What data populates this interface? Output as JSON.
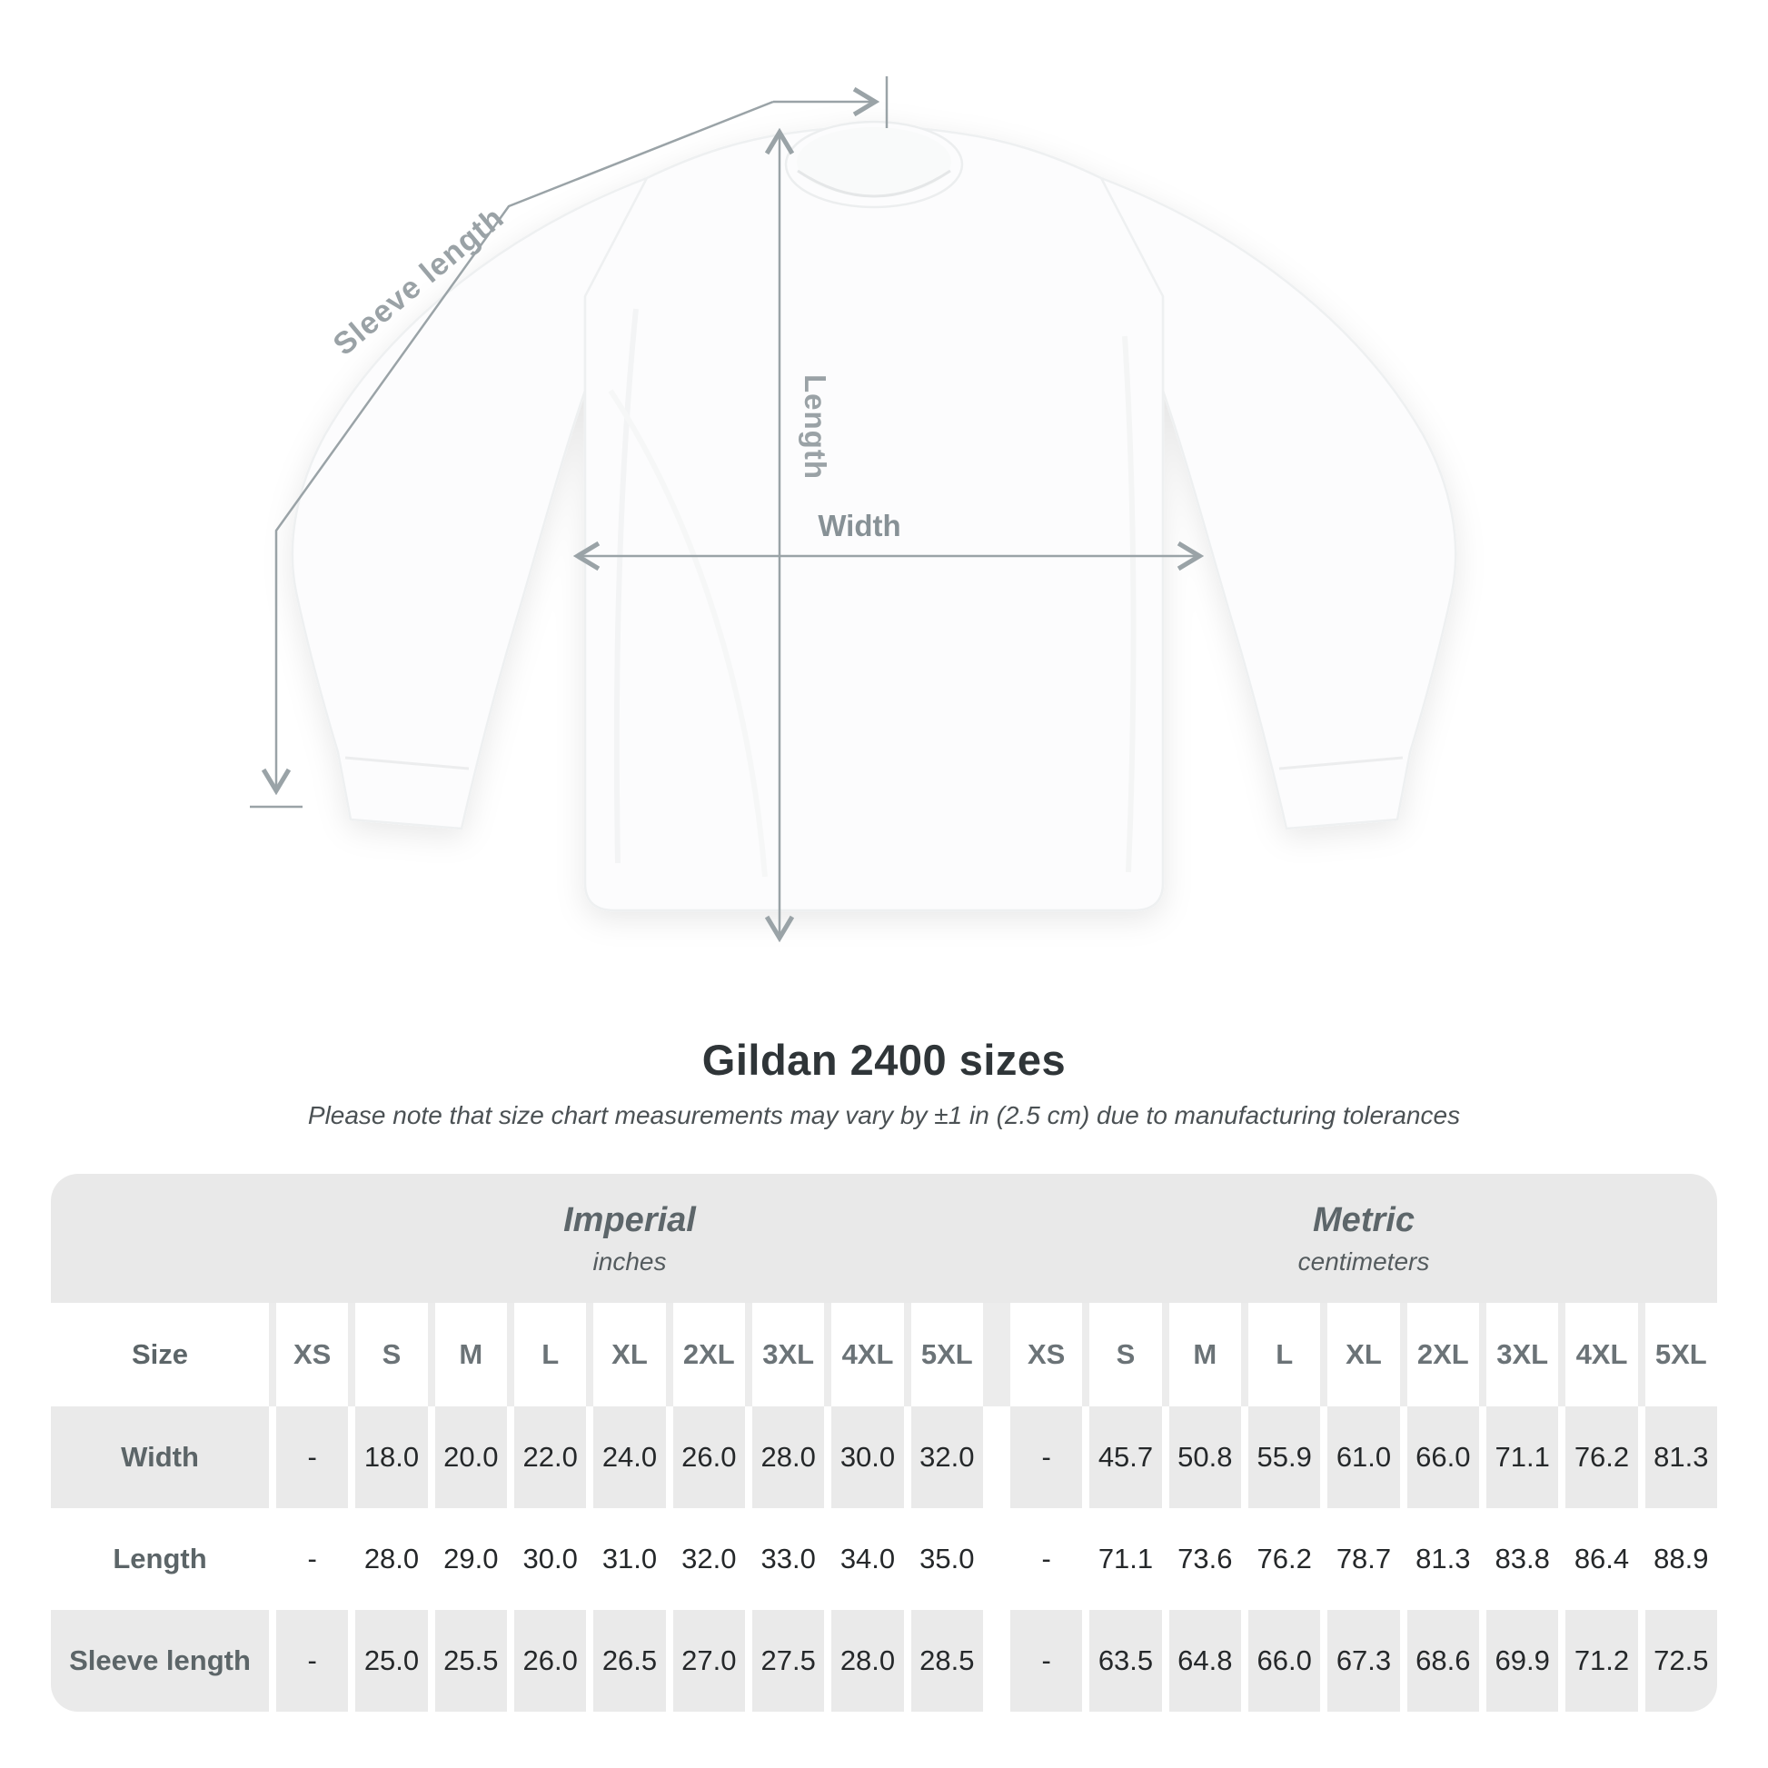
{
  "title": "Gildan 2400 sizes",
  "subtitle": "Please note that size chart measurements may vary by ±1 in (2.5 cm) due to manufacturing tolerances",
  "diagram": {
    "labels": {
      "sleeve_length": "Sleeve length",
      "length": "Length",
      "width": "Width"
    },
    "line_color": "#9aa3a7",
    "label_color": "#98a1a5"
  },
  "table": {
    "corner_label": "Size",
    "band_color": "#e9e9e9",
    "shade_color": "#eaeaea",
    "groups": [
      {
        "label": "Imperial",
        "unit": "inches"
      },
      {
        "label": "Metric",
        "unit": "centimeters"
      }
    ],
    "sizes": [
      "XS",
      "S",
      "M",
      "L",
      "XL",
      "2XL",
      "3XL",
      "4XL",
      "5XL"
    ],
    "rows": [
      {
        "label": "Width",
        "shaded": true,
        "imperial": [
          "-",
          "18.0",
          "20.0",
          "22.0",
          "24.0",
          "26.0",
          "28.0",
          "30.0",
          "32.0"
        ],
        "metric": [
          "-",
          "45.7",
          "50.8",
          "55.9",
          "61.0",
          "66.0",
          "71.1",
          "76.2",
          "81.3"
        ]
      },
      {
        "label": "Length",
        "shaded": false,
        "imperial": [
          "-",
          "28.0",
          "29.0",
          "30.0",
          "31.0",
          "32.0",
          "33.0",
          "34.0",
          "35.0"
        ],
        "metric": [
          "-",
          "71.1",
          "73.6",
          "76.2",
          "78.7",
          "81.3",
          "83.8",
          "86.4",
          "88.9"
        ]
      },
      {
        "label": "Sleeve length",
        "shaded": true,
        "imperial": [
          "-",
          "25.0",
          "25.5",
          "26.0",
          "26.5",
          "27.0",
          "27.5",
          "28.0",
          "28.5"
        ],
        "metric": [
          "-",
          "63.5",
          "64.8",
          "66.0",
          "67.3",
          "68.6",
          "69.9",
          "71.2",
          "72.5"
        ]
      }
    ]
  },
  "chart_data": {
    "type": "table",
    "title": "Gildan 2400 sizes",
    "note": "Please note that size chart measurements may vary by ±1 in (2.5 cm) due to manufacturing tolerances",
    "column_groups": [
      {
        "label": "Imperial",
        "unit": "inches"
      },
      {
        "label": "Metric",
        "unit": "centimeters"
      }
    ],
    "sizes": [
      "XS",
      "S",
      "M",
      "L",
      "XL",
      "2XL",
      "3XL",
      "4XL",
      "5XL"
    ],
    "measurements": [
      {
        "name": "Width",
        "imperial_inches": [
          null,
          18.0,
          20.0,
          22.0,
          24.0,
          26.0,
          28.0,
          30.0,
          32.0
        ],
        "metric_cm": [
          null,
          45.7,
          50.8,
          55.9,
          61.0,
          66.0,
          71.1,
          76.2,
          81.3
        ]
      },
      {
        "name": "Length",
        "imperial_inches": [
          null,
          28.0,
          29.0,
          30.0,
          31.0,
          32.0,
          33.0,
          34.0,
          35.0
        ],
        "metric_cm": [
          null,
          71.1,
          73.6,
          76.2,
          78.7,
          81.3,
          83.8,
          86.4,
          88.9
        ]
      },
      {
        "name": "Sleeve length",
        "imperial_inches": [
          null,
          25.0,
          25.5,
          26.0,
          26.5,
          27.0,
          27.5,
          28.0,
          28.5
        ],
        "metric_cm": [
          null,
          63.5,
          64.8,
          66.0,
          67.3,
          68.6,
          69.9,
          71.2,
          72.5
        ]
      }
    ]
  }
}
